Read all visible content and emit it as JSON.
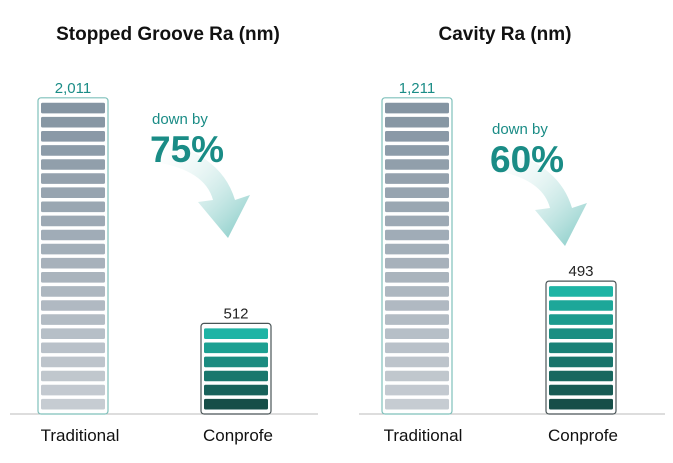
{
  "chart_data": [
    {
      "type": "bar",
      "title": "Stopped Groove Ra (nm)",
      "categories": [
        "Traditional",
        "Conprofe"
      ],
      "values": [
        2011,
        512
      ],
      "value_labels": [
        "2,011",
        "512"
      ],
      "annotation": {
        "text": "down by",
        "percent": "75%"
      },
      "colors": {
        "traditional": "#8e9aa8",
        "conprofe": "#1aa99a",
        "accent": "#1a8c86"
      },
      "xlabel": "",
      "ylabel": "",
      "grid": false,
      "legend": "none"
    },
    {
      "type": "bar",
      "title": "Cavity Ra (nm)",
      "categories": [
        "Traditional",
        "Conprofe"
      ],
      "values": [
        1211,
        493
      ],
      "value_labels": [
        "1,211",
        "493"
      ],
      "annotation": {
        "text": "down by",
        "percent": "60%"
      },
      "colors": {
        "traditional": "#8e9aa8",
        "conprofe": "#1aa99a",
        "accent": "#1a8c86"
      },
      "xlabel": "",
      "ylabel": "",
      "grid": false,
      "legend": "none"
    }
  ]
}
